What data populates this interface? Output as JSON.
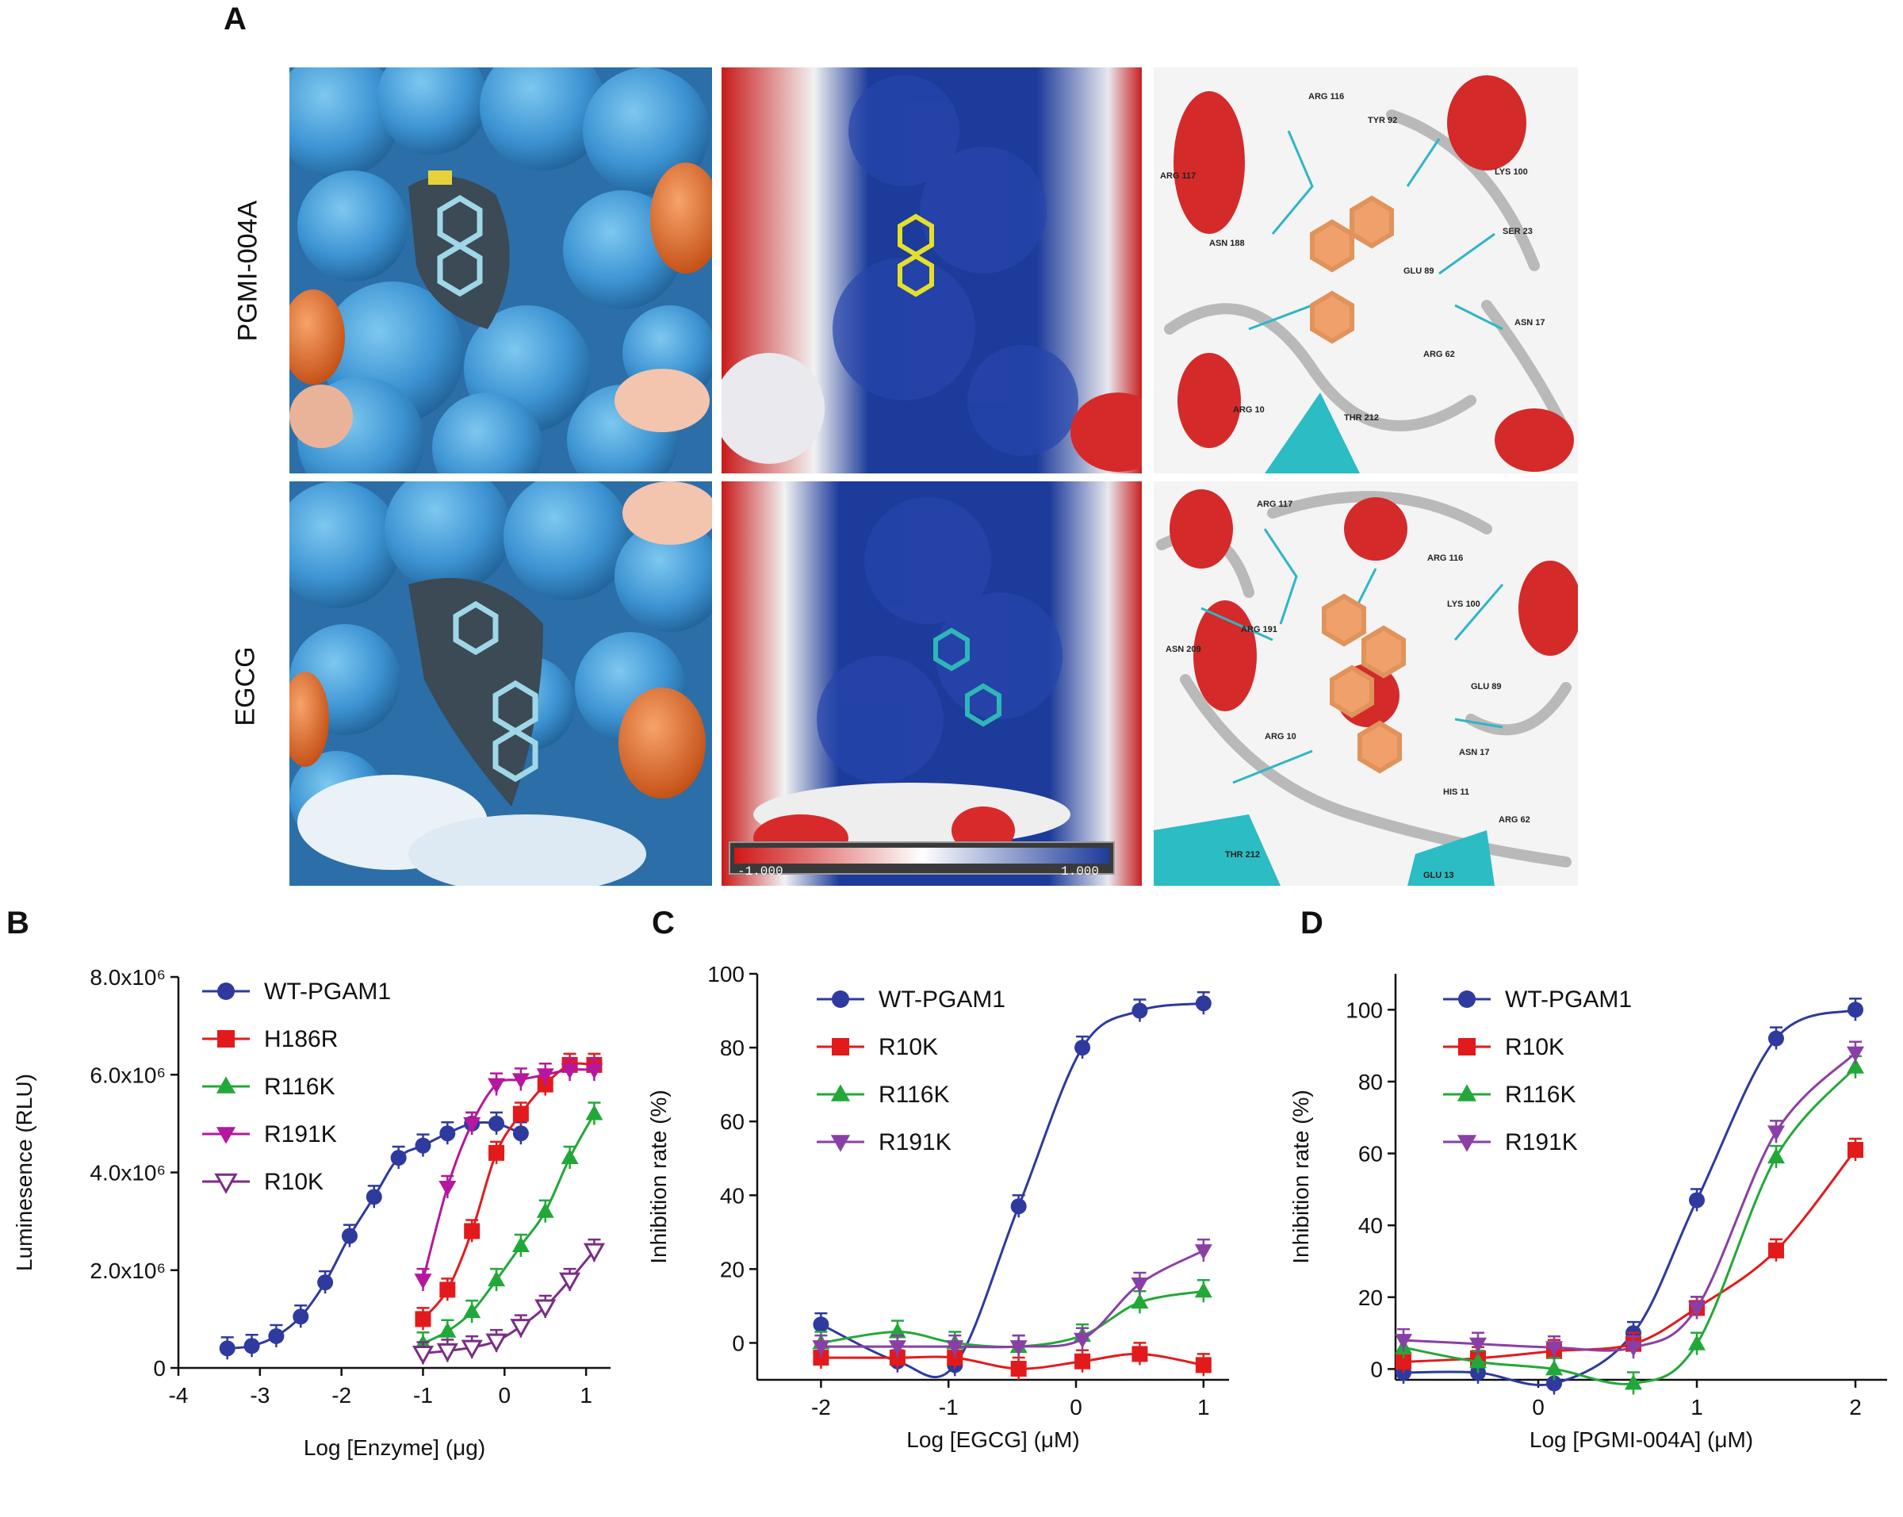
{
  "panels": {
    "A": "A",
    "B": "B",
    "C": "C",
    "D": "D"
  },
  "rows": [
    "PGMI-004A",
    "EGCG"
  ],
  "colorbar": {
    "min": "-1.000",
    "max": "1.000"
  },
  "residues": {
    "top": [
      "ARG 116",
      "TYR 92",
      "ARG 117",
      "LYS 100",
      "SER 23",
      "ASN 188",
      "GLU 89",
      "ASN 17",
      "ARG 62",
      "ARG 10",
      "THR 212"
    ],
    "bottom": [
      "ARG 117",
      "ARG 116",
      "LYS 100",
      "ARG 191",
      "ASN 209",
      "GLU 89",
      "ARG 10",
      "ASN 17",
      "HIS 11",
      "ARG 62",
      "THR 212",
      "GLU 13"
    ]
  },
  "colors": {
    "blue": "#2e3a9e",
    "red": "#e31a1c",
    "green": "#22a838",
    "magenta": "#b5179e",
    "purple": "#7a2e85",
    "violet": "#8a3fa6"
  },
  "chart_data": [
    {
      "type": "scatter",
      "panel": "B",
      "xlabel": "Log [Enzyme] (μg)",
      "ylabel": "Luminesence (RLU)",
      "xlim": [
        -4,
        1.3
      ],
      "ylim": [
        0,
        8000000
      ],
      "xticks": [
        "-4",
        "-3",
        "-2",
        "-1",
        "0",
        "1"
      ],
      "yticks": [
        "0",
        "2.0x10⁶",
        "4.0x10⁶",
        "6.0x10⁶",
        "8.0x10⁶"
      ],
      "legend_position": "top-left",
      "series": [
        {
          "name": "WT-PGAM1",
          "color": "#2e3a9e",
          "marker": "circle",
          "x": [
            -3.4,
            -3.1,
            -2.8,
            -2.5,
            -2.2,
            -1.9,
            -1.6,
            -1.3,
            -1.0,
            -0.7,
            -0.4,
            -0.1,
            0.2
          ],
          "y": [
            400000,
            450000,
            650000,
            1050000,
            1750000,
            2700000,
            3500000,
            4300000,
            4550000,
            4800000,
            5000000,
            5000000,
            4800000
          ]
        },
        {
          "name": "H186R",
          "color": "#e31a1c",
          "marker": "square",
          "x": [
            -1.0,
            -0.7,
            -0.4,
            -0.1,
            0.2,
            0.5,
            0.8,
            1.1
          ],
          "y": [
            1000000,
            1600000,
            2800000,
            4400000,
            5200000,
            5800000,
            6200000,
            6200000
          ]
        },
        {
          "name": "R116K",
          "color": "#22a838",
          "marker": "triangle-up",
          "x": [
            -1.0,
            -0.7,
            -0.4,
            -0.1,
            0.2,
            0.5,
            0.8,
            1.1
          ],
          "y": [
            500000,
            750000,
            1150000,
            1800000,
            2500000,
            3200000,
            4300000,
            5200000
          ]
        },
        {
          "name": "R191K",
          "color": "#b5179e",
          "marker": "triangle-down",
          "x": [
            -1.0,
            -0.7,
            -0.4,
            -0.1,
            0.2,
            0.5,
            0.8,
            1.1
          ],
          "y": [
            1800000,
            3700000,
            5000000,
            5800000,
            5900000,
            6000000,
            6100000,
            6100000
          ]
        },
        {
          "name": "R10K",
          "color": "#7a2e85",
          "marker": "triangle-down-open",
          "x": [
            -1.0,
            -0.7,
            -0.4,
            -0.1,
            0.2,
            0.5,
            0.8,
            1.1
          ],
          "y": [
            300000,
            350000,
            420000,
            550000,
            850000,
            1250000,
            1800000,
            2400000
          ]
        }
      ]
    },
    {
      "type": "scatter",
      "panel": "C",
      "xlabel": "Log [EGCG] (μM)",
      "ylabel": "Inhibition rate (%)",
      "xlim": [
        -2.5,
        1.2
      ],
      "ylim": [
        -10,
        100
      ],
      "xticks": [
        "-2",
        "-1",
        "0",
        "1"
      ],
      "yticks": [
        "0",
        "20",
        "40",
        "60",
        "80",
        "100"
      ],
      "legend_position": "top-left",
      "series": [
        {
          "name": "WT-PGAM1",
          "color": "#2e3a9e",
          "marker": "circle",
          "x": [
            -2,
            -1.4,
            -0.95,
            -0.45,
            0.05,
            0.5,
            1.0
          ],
          "y": [
            5,
            -5,
            -6,
            37,
            80,
            90,
            92
          ]
        },
        {
          "name": "R10K",
          "color": "#e31a1c",
          "marker": "square",
          "x": [
            -2,
            -1.4,
            -0.95,
            -0.45,
            0.05,
            0.5,
            1.0
          ],
          "y": [
            -4,
            -4,
            -4,
            -7,
            -5,
            -3,
            -6
          ]
        },
        {
          "name": "R116K",
          "color": "#22a838",
          "marker": "triangle-up",
          "x": [
            -2,
            -1.4,
            -0.95,
            -0.45,
            0.05,
            0.5,
            1.0
          ],
          "y": [
            0,
            3,
            0,
            -1,
            2,
            11,
            14
          ]
        },
        {
          "name": "R191K",
          "color": "#8a3fa6",
          "marker": "triangle-down",
          "x": [
            -2,
            -1.4,
            -0.95,
            -0.45,
            0.05,
            0.5,
            1.0
          ],
          "y": [
            -1,
            -1,
            -1,
            -1,
            1,
            16,
            25
          ]
        }
      ]
    },
    {
      "type": "scatter",
      "panel": "D",
      "xlabel": "Log [PGMI-004A] (μM)",
      "ylabel": "Inhibition rate (%)",
      "xlim": [
        -0.9,
        2.2
      ],
      "ylim": [
        -3,
        110
      ],
      "xticks": [
        "0",
        "1",
        "2"
      ],
      "yticks": [
        "0",
        "20",
        "40",
        "60",
        "80",
        "100"
      ],
      "legend_position": "top-left",
      "series": [
        {
          "name": "WT-PGAM1",
          "color": "#2e3a9e",
          "marker": "circle",
          "x": [
            -0.85,
            -0.38,
            0.1,
            0.6,
            1.0,
            1.5,
            2.0
          ],
          "y": [
            -1,
            -1,
            -4,
            10,
            47,
            92,
            100
          ]
        },
        {
          "name": "R10K",
          "color": "#e31a1c",
          "marker": "square",
          "x": [
            -0.85,
            -0.38,
            0.1,
            0.6,
            1.0,
            1.5,
            2.0
          ],
          "y": [
            2,
            3,
            5,
            7,
            17,
            33,
            61
          ]
        },
        {
          "name": "R116K",
          "color": "#22a838",
          "marker": "triangle-up",
          "x": [
            -0.85,
            -0.38,
            0.1,
            0.6,
            1.0,
            1.5,
            2.0
          ],
          "y": [
            6,
            2,
            0,
            -4,
            7,
            59,
            84
          ]
        },
        {
          "name": "R191K",
          "color": "#8a3fa6",
          "marker": "triangle-down",
          "x": [
            -0.85,
            -0.38,
            0.1,
            0.6,
            1.0,
            1.5,
            2.0
          ],
          "y": [
            8,
            7,
            6,
            6,
            17,
            66,
            88
          ]
        }
      ]
    }
  ]
}
